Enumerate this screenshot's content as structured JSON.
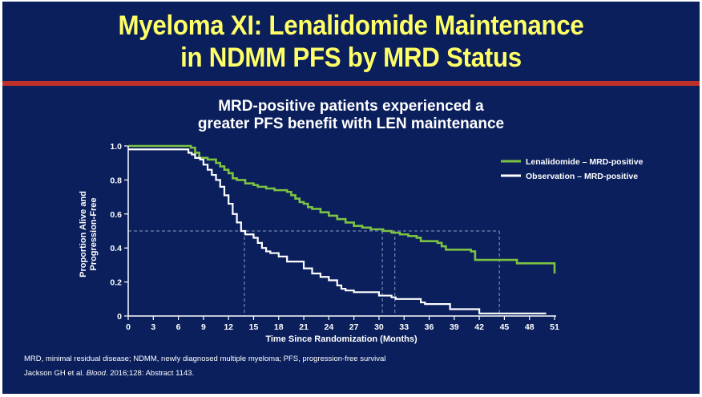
{
  "slide": {
    "title_line1": "Myeloma XI: Lenalidomide Maintenance",
    "title_line2": "in NDMM PFS by MRD Status",
    "subtitle_line1": "MRD-positive patients experienced a",
    "subtitle_line2": "greater PFS benefit with LEN maintenance",
    "footnote_abbrev": "MRD, minimal residual disease; NDMM, newly diagnosed multiple myeloma; PFS, progression-free survival",
    "citation_author": "Jackson GH et al. ",
    "citation_journal": "Blood",
    "citation_rest": ". 2016;128: Abstract 1143.",
    "colors": {
      "background": "#0a1f5c",
      "title": "#ffff66",
      "rule": "#c0302a",
      "lenalidomide": "#7cc242",
      "observation": "#ffffff"
    }
  },
  "chart_data": {
    "type": "line",
    "step": true,
    "title": "MRD-positive patients experienced a greater PFS benefit with LEN maintenance",
    "xlabel": "Time Since Randomization (Months)",
    "ylabel_line1": "Proportion Alive and",
    "ylabel_line2": "Progression-Free",
    "xlim": [
      0,
      51
    ],
    "ylim": [
      0,
      1.0
    ],
    "xticks": [
      "0",
      "3",
      "6",
      "9",
      "12",
      "15",
      "18",
      "21",
      "24",
      "27",
      "30",
      "33",
      "36",
      "39",
      "42",
      "45",
      "48",
      "51"
    ],
    "yticks": [
      "0",
      "0.2",
      "0.4",
      "0.6",
      "0.8",
      "1.0"
    ],
    "grid": false,
    "legend_position": "top-right",
    "series": [
      {
        "name": "Lenalidomide – MRD-positive",
        "color": "#7cc242",
        "x": [
          0,
          7.5,
          8.0,
          8.5,
          9.5,
          10.5,
          11.0,
          11.5,
          12.0,
          12.5,
          13.0,
          14.0,
          15.0,
          15.5,
          16.5,
          17.5,
          19.0,
          19.5,
          20.0,
          20.5,
          21.0,
          21.5,
          22.0,
          23.0,
          24.0,
          25.0,
          26.0,
          27.0,
          28.0,
          29.0,
          30.5,
          31.5,
          32.5,
          33.5,
          34.5,
          35.0,
          37.0,
          37.5,
          38.0,
          41.0,
          41.5,
          46.5,
          51.0,
          51.0
        ],
        "y": [
          1.0,
          0.99,
          0.96,
          0.93,
          0.92,
          0.9,
          0.88,
          0.86,
          0.84,
          0.81,
          0.8,
          0.78,
          0.77,
          0.76,
          0.75,
          0.74,
          0.73,
          0.71,
          0.69,
          0.67,
          0.66,
          0.64,
          0.63,
          0.61,
          0.59,
          0.57,
          0.55,
          0.53,
          0.52,
          0.51,
          0.5,
          0.49,
          0.48,
          0.47,
          0.46,
          0.44,
          0.43,
          0.41,
          0.39,
          0.38,
          0.33,
          0.31,
          0.31,
          0.25
        ]
      },
      {
        "name": "Observation – MRD-positive",
        "color": "#ffffff",
        "x": [
          0,
          7.2,
          7.6,
          8.0,
          8.6,
          9.0,
          9.5,
          10.0,
          10.5,
          11.0,
          11.5,
          12.0,
          12.5,
          13.0,
          13.5,
          14.0,
          15.0,
          15.5,
          16.0,
          16.5,
          17.0,
          18.0,
          19.0,
          21.0,
          22.0,
          23.0,
          24.0,
          25.0,
          25.5,
          26.0,
          27.0,
          29.0,
          30.0,
          31.5,
          32.0,
          35.0,
          35.5,
          38.5,
          42.0,
          50.0
        ],
        "y": [
          0.98,
          0.96,
          0.95,
          0.93,
          0.92,
          0.89,
          0.86,
          0.83,
          0.8,
          0.76,
          0.71,
          0.66,
          0.6,
          0.55,
          0.5,
          0.48,
          0.46,
          0.43,
          0.4,
          0.38,
          0.37,
          0.35,
          0.32,
          0.28,
          0.25,
          0.23,
          0.21,
          0.18,
          0.16,
          0.15,
          0.14,
          0.14,
          0.12,
          0.11,
          0.1,
          0.08,
          0.07,
          0.04,
          0.015,
          0.015
        ]
      }
    ],
    "median_reference": {
      "y": 0.5,
      "x": [
        13.9,
        30.4,
        31.9,
        44.4
      ]
    }
  }
}
